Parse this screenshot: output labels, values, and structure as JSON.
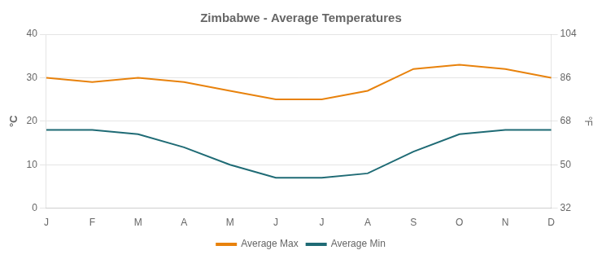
{
  "chart_data": {
    "type": "line",
    "title": "Zimbabwe - Average Temperatures",
    "categories": [
      "J",
      "F",
      "M",
      "A",
      "M",
      "J",
      "J",
      "A",
      "S",
      "O",
      "N",
      "D"
    ],
    "series": [
      {
        "name": "Average Max",
        "color": "#E8820C",
        "values": [
          30,
          29,
          30,
          29,
          27,
          25,
          25,
          27,
          32,
          33,
          32,
          30
        ]
      },
      {
        "name": "Average Min",
        "color": "#1F6B75",
        "values": [
          18,
          18,
          17,
          14,
          10,
          7,
          7,
          8,
          13,
          17,
          18,
          18
        ]
      }
    ],
    "ylabel": "°C",
    "y2label": "°F",
    "ylim": [
      0,
      40
    ],
    "yticks": [
      0,
      10,
      20,
      30,
      40
    ],
    "y2lim": [
      32,
      104
    ],
    "y2ticks": [
      32,
      50,
      68,
      86,
      104
    ],
    "grid": true,
    "legend": "bottom"
  }
}
